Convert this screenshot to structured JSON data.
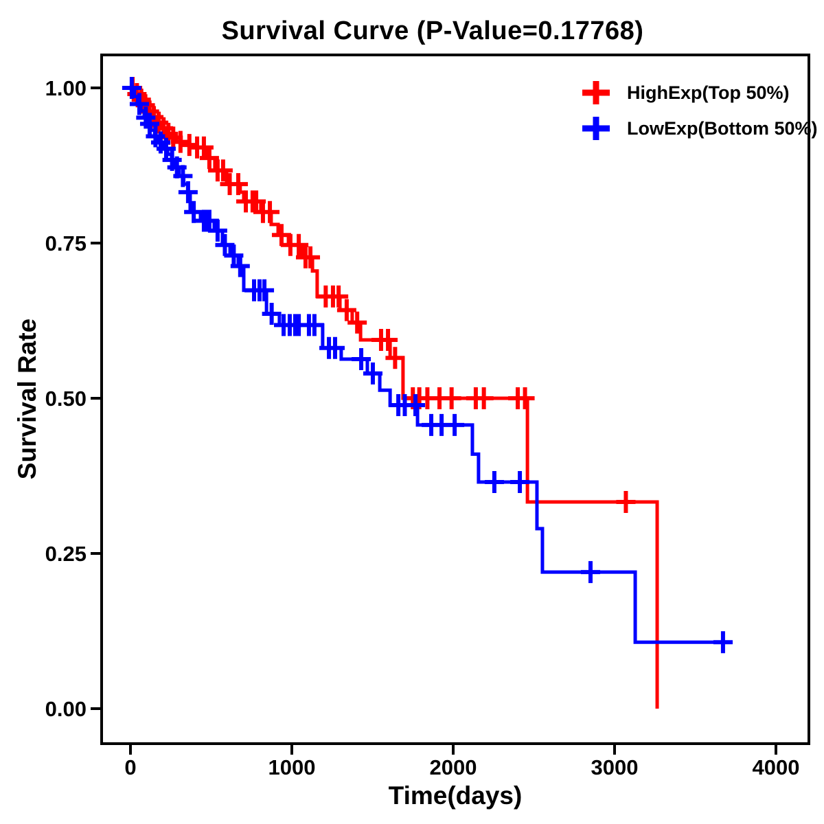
{
  "chart_data": {
    "type": "line",
    "subtype": "kaplan-meier-step",
    "title": "Survival Curve (P-Value=0.17768)",
    "p_value": "0.17768",
    "xlabel": "Time(days)",
    "ylabel": "Survival Rate",
    "xlim": [
      -180,
      4200
    ],
    "ylim": [
      -0.055,
      1.055
    ],
    "grid": false,
    "legend_position": "top-right",
    "background_color": "#FFFFFF",
    "axis_color": "#000000",
    "xticks": [
      {
        "v": 0,
        "label": "0"
      },
      {
        "v": 1000,
        "label": "1000"
      },
      {
        "v": 2000,
        "label": "2000"
      },
      {
        "v": 3000,
        "label": "3000"
      },
      {
        "v": 4000,
        "label": "4000"
      }
    ],
    "yticks": [
      {
        "v": 0.0,
        "label": "0.00"
      },
      {
        "v": 0.25,
        "label": "0.25"
      },
      {
        "v": 0.5,
        "label": "0.50"
      },
      {
        "v": 0.75,
        "label": "0.75"
      },
      {
        "v": 1.0,
        "label": "1.00"
      }
    ],
    "series": [
      {
        "name": "HighExp(Top 50%)",
        "color": "#FF0000",
        "end_t": 3264,
        "steps": [
          [
            0,
            1.0
          ],
          [
            30,
            0.99
          ],
          [
            55,
            0.981
          ],
          [
            80,
            0.972
          ],
          [
            105,
            0.962
          ],
          [
            130,
            0.953
          ],
          [
            160,
            0.944
          ],
          [
            190,
            0.935
          ],
          [
            220,
            0.926
          ],
          [
            250,
            0.92
          ],
          [
            285,
            0.913
          ],
          [
            340,
            0.908
          ],
          [
            396,
            0.904
          ],
          [
            468,
            0.887
          ],
          [
            523,
            0.867
          ],
          [
            596,
            0.845
          ],
          [
            680,
            0.832
          ],
          [
            702,
            0.817
          ],
          [
            808,
            0.8
          ],
          [
            872,
            0.78
          ],
          [
            915,
            0.763
          ],
          [
            979,
            0.747
          ],
          [
            1064,
            0.727
          ],
          [
            1128,
            0.705
          ],
          [
            1157,
            0.664
          ],
          [
            1298,
            0.642
          ],
          [
            1374,
            0.622
          ],
          [
            1426,
            0.594
          ],
          [
            1609,
            0.565
          ],
          [
            1689,
            0.5
          ],
          [
            2460,
            0.333
          ],
          [
            3264,
            0.0
          ]
        ],
        "censors": [
          [
            13,
            1.0
          ],
          [
            40,
            0.99
          ],
          [
            67,
            0.981
          ],
          [
            92,
            0.972
          ],
          [
            118,
            0.962
          ],
          [
            145,
            0.953
          ],
          [
            175,
            0.944
          ],
          [
            205,
            0.935
          ],
          [
            235,
            0.926
          ],
          [
            265,
            0.92
          ],
          [
            310,
            0.913
          ],
          [
            365,
            0.908
          ],
          [
            413,
            0.904
          ],
          [
            455,
            0.904
          ],
          [
            489,
            0.887
          ],
          [
            540,
            0.867
          ],
          [
            574,
            0.867
          ],
          [
            615,
            0.845
          ],
          [
            668,
            0.845
          ],
          [
            715,
            0.817
          ],
          [
            757,
            0.817
          ],
          [
            779,
            0.817
          ],
          [
            821,
            0.8
          ],
          [
            864,
            0.8
          ],
          [
            936,
            0.763
          ],
          [
            991,
            0.747
          ],
          [
            1043,
            0.747
          ],
          [
            1085,
            0.727
          ],
          [
            1115,
            0.727
          ],
          [
            1210,
            0.664
          ],
          [
            1255,
            0.664
          ],
          [
            1290,
            0.664
          ],
          [
            1340,
            0.642
          ],
          [
            1405,
            0.622
          ],
          [
            1553,
            0.594
          ],
          [
            1596,
            0.594
          ],
          [
            1640,
            0.565
          ],
          [
            1750,
            0.5
          ],
          [
            1790,
            0.5
          ],
          [
            1840,
            0.5
          ],
          [
            1915,
            0.5
          ],
          [
            1990,
            0.5
          ],
          [
            2140,
            0.5
          ],
          [
            2190,
            0.5
          ],
          [
            2400,
            0.5
          ],
          [
            2445,
            0.5
          ],
          [
            3070,
            0.333
          ]
        ]
      },
      {
        "name": "LowExp(Bottom 50%)",
        "color": "#0000FF",
        "end_t": 3732,
        "steps": [
          [
            0,
            1.0
          ],
          [
            25,
            0.986
          ],
          [
            45,
            0.974
          ],
          [
            65,
            0.963
          ],
          [
            85,
            0.952
          ],
          [
            105,
            0.942
          ],
          [
            125,
            0.932
          ],
          [
            150,
            0.922
          ],
          [
            175,
            0.912
          ],
          [
            200,
            0.902
          ],
          [
            230,
            0.893
          ],
          [
            255,
            0.884
          ],
          [
            275,
            0.872
          ],
          [
            300,
            0.858
          ],
          [
            330,
            0.845
          ],
          [
            355,
            0.832
          ],
          [
            370,
            0.8
          ],
          [
            434,
            0.786
          ],
          [
            519,
            0.77
          ],
          [
            570,
            0.747
          ],
          [
            617,
            0.73
          ],
          [
            668,
            0.713
          ],
          [
            702,
            0.674
          ],
          [
            843,
            0.636
          ],
          [
            923,
            0.618
          ],
          [
            1191,
            0.581
          ],
          [
            1306,
            0.563
          ],
          [
            1468,
            0.54
          ],
          [
            1545,
            0.513
          ],
          [
            1609,
            0.489
          ],
          [
            1779,
            0.457
          ],
          [
            2119,
            0.41
          ],
          [
            2157,
            0.365
          ],
          [
            2519,
            0.29
          ],
          [
            2553,
            0.22
          ],
          [
            3128,
            0.107
          ]
        ],
        "censors": [
          [
            8,
            1.0
          ],
          [
            55,
            0.974
          ],
          [
            95,
            0.952
          ],
          [
            119,
            0.942
          ],
          [
            155,
            0.922
          ],
          [
            187,
            0.912
          ],
          [
            221,
            0.902
          ],
          [
            258,
            0.884
          ],
          [
            288,
            0.872
          ],
          [
            325,
            0.858
          ],
          [
            357,
            0.832
          ],
          [
            392,
            0.8
          ],
          [
            455,
            0.786
          ],
          [
            477,
            0.786
          ],
          [
            489,
            0.786
          ],
          [
            540,
            0.77
          ],
          [
            585,
            0.747
          ],
          [
            640,
            0.73
          ],
          [
            680,
            0.713
          ],
          [
            766,
            0.674
          ],
          [
            800,
            0.674
          ],
          [
            830,
            0.674
          ],
          [
            875,
            0.636
          ],
          [
            949,
            0.618
          ],
          [
            987,
            0.618
          ],
          [
            1021,
            0.618
          ],
          [
            1043,
            0.618
          ],
          [
            1106,
            0.618
          ],
          [
            1140,
            0.618
          ],
          [
            1230,
            0.581
          ],
          [
            1268,
            0.581
          ],
          [
            1430,
            0.563
          ],
          [
            1502,
            0.54
          ],
          [
            1660,
            0.489
          ],
          [
            1700,
            0.489
          ],
          [
            1766,
            0.489
          ],
          [
            1864,
            0.457
          ],
          [
            1928,
            0.457
          ],
          [
            2009,
            0.457
          ],
          [
            2255,
            0.365
          ],
          [
            2413,
            0.365
          ],
          [
            2851,
            0.22
          ],
          [
            3672,
            0.107
          ]
        ]
      }
    ]
  }
}
